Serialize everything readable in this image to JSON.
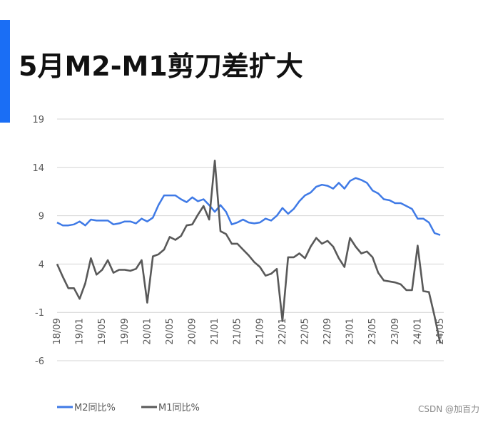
{
  "title": "5月M2-M1剪刀差扩大",
  "watermark": "CSDN @加百力",
  "colors": {
    "accent": "#1a6ef5",
    "m2": "#3f7ae6",
    "m1": "#595959",
    "grid": "#d4d4d4",
    "tick": "#595959"
  },
  "chart_data": {
    "type": "line",
    "title": "5月M2-M1剪刀差扩大",
    "xlabel": "",
    "ylabel": "",
    "ylim": [
      -6,
      19
    ],
    "yticks": [
      19,
      14,
      9,
      4,
      -1,
      -6
    ],
    "grid": true,
    "legend": "bottom-left",
    "x": [
      "18/09",
      "18/10",
      "18/11",
      "18/12",
      "19/01",
      "19/02",
      "19/03",
      "19/04",
      "19/05",
      "19/06",
      "19/07",
      "19/08",
      "19/09",
      "19/10",
      "19/11",
      "19/12",
      "20/01",
      "20/02",
      "20/03",
      "20/04",
      "20/05",
      "20/06",
      "20/07",
      "20/08",
      "20/09",
      "20/10",
      "20/11",
      "20/12",
      "21/01",
      "21/02",
      "21/03",
      "21/04",
      "21/05",
      "21/06",
      "21/07",
      "21/08",
      "21/09",
      "21/10",
      "21/11",
      "21/12",
      "22/01",
      "22/02",
      "22/03",
      "22/04",
      "22/05",
      "22/06",
      "22/07",
      "22/08",
      "22/09",
      "22/10",
      "22/11",
      "22/12",
      "23/01",
      "23/02",
      "23/03",
      "23/04",
      "23/05",
      "23/06",
      "23/07",
      "23/08",
      "23/09",
      "23/10",
      "23/11",
      "23/12",
      "24/01",
      "24/02",
      "24/03",
      "24/04",
      "24/05"
    ],
    "series": [
      {
        "name": "M2同比%",
        "values": [
          8.3,
          8.0,
          8.0,
          8.1,
          8.4,
          8.0,
          8.6,
          8.5,
          8.5,
          8.5,
          8.1,
          8.2,
          8.4,
          8.4,
          8.2,
          8.7,
          8.4,
          8.8,
          10.1,
          11.1,
          11.1,
          11.1,
          10.7,
          10.4,
          10.9,
          10.5,
          10.7,
          10.1,
          9.4,
          10.1,
          9.4,
          8.1,
          8.3,
          8.6,
          8.3,
          8.2,
          8.3,
          8.7,
          8.5,
          9.0,
          9.8,
          9.2,
          9.7,
          10.5,
          11.1,
          11.4,
          12.0,
          12.2,
          12.1,
          11.8,
          12.4,
          11.8,
          12.6,
          12.9,
          12.7,
          12.4,
          11.6,
          11.3,
          10.7,
          10.6,
          10.3,
          10.3,
          10.0,
          9.7,
          8.7,
          8.7,
          8.3,
          7.2,
          7.0
        ]
      },
      {
        "name": "M1同比%",
        "values": [
          4.0,
          2.7,
          1.5,
          1.5,
          0.4,
          2.0,
          4.6,
          2.9,
          3.4,
          4.4,
          3.1,
          3.4,
          3.4,
          3.3,
          3.5,
          4.4,
          0.0,
          4.8,
          5.0,
          5.5,
          6.8,
          6.5,
          6.9,
          8.0,
          8.1,
          9.1,
          10.0,
          8.6,
          14.7,
          7.4,
          7.1,
          6.1,
          6.1,
          5.5,
          4.9,
          4.2,
          3.7,
          2.8,
          3.0,
          3.5,
          -1.9,
          4.7,
          4.7,
          5.1,
          4.6,
          5.8,
          6.7,
          6.1,
          6.4,
          5.8,
          4.6,
          3.7,
          6.7,
          5.8,
          5.1,
          5.3,
          4.7,
          3.1,
          2.3,
          2.2,
          2.1,
          1.9,
          1.3,
          1.3,
          5.9,
          1.2,
          1.1,
          -1.4,
          -4.2
        ]
      }
    ]
  }
}
